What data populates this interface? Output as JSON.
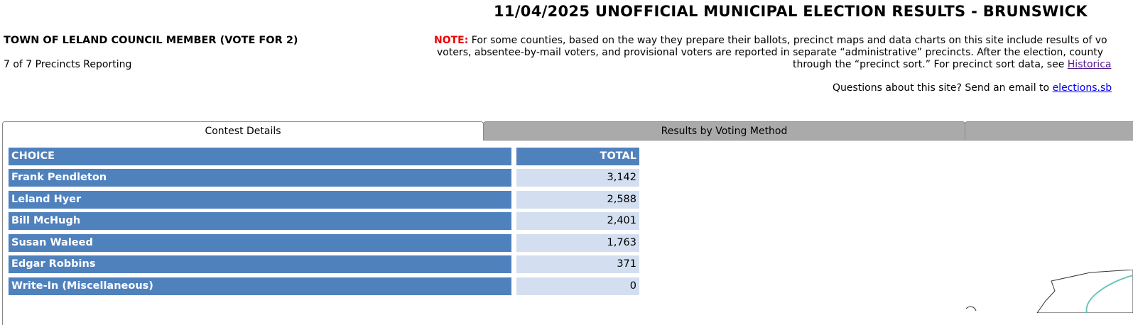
{
  "header": {
    "title": "11/04/2025 UNOFFICIAL MUNICIPAL ELECTION RESULTS - BRUNSWICK"
  },
  "contest": {
    "title": "TOWN OF LELAND COUNCIL MEMBER (VOTE FOR 2)",
    "precincts": "7 of 7 Precincts Reporting"
  },
  "note": {
    "label": "NOTE:",
    "lines": [
      "For some counties, based on the way they prepare their ballots, precinct maps and data charts on this site include results of vo",
      "voters, absentee-by-mail voters, and provisional voters are reported in separate “administrative” precincts. After the election, county",
      "through the “precinct sort.” For precinct sort data, see"
    ],
    "link": "Historica"
  },
  "contact": {
    "text": "Questions about this site? Send an email to",
    "link": "elections.sb"
  },
  "tabs": [
    "Contest Details",
    "Results by Voting Method"
  ],
  "table": {
    "headers": [
      "CHOICE",
      "TOTAL"
    ],
    "rows": [
      [
        "Frank Pendleton",
        "3,142"
      ],
      [
        "Leland Hyer",
        "2,588"
      ],
      [
        "Bill McHugh",
        "2,401"
      ],
      [
        "Susan Waleed",
        "1,763"
      ],
      [
        "Edgar Robbins",
        "371"
      ],
      [
        "Write-In (Miscellaneous)",
        "0"
      ]
    ]
  }
}
